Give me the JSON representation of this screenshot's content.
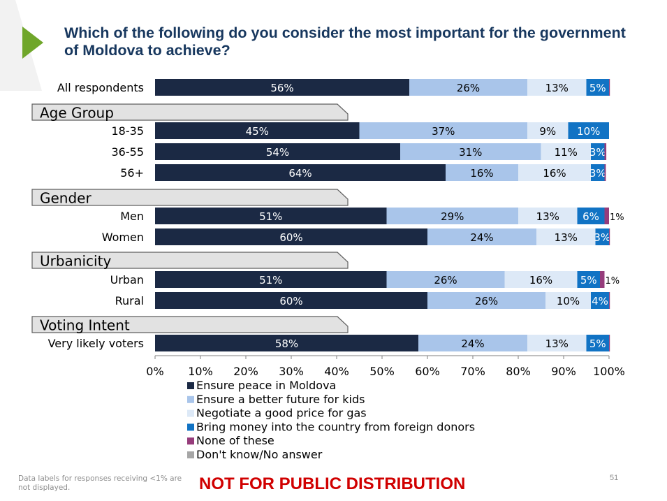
{
  "slide": {
    "title": "Which of the following do you consider the most important for the government of Moldova  to achieve?",
    "footnote": "Data labels for responses receiving <1% are not displayed.",
    "confidential": "NOT FOR PUBLIC DISTRIBUTION",
    "page_number": "51",
    "accent_color": "#6fa62a"
  },
  "chart_data": {
    "type": "bar",
    "orientation": "horizontal",
    "stacked": true,
    "title": "",
    "xlim": [
      0,
      100
    ],
    "x_ticks": [
      "0%",
      "10%",
      "20%",
      "30%",
      "40%",
      "50%",
      "60%",
      "70%",
      "80%",
      "90%",
      "100%"
    ],
    "legend_position": "bottom",
    "series": [
      {
        "name": "Ensure peace in Moldova",
        "color": "#1b2944"
      },
      {
        "name": "Ensure a better future for kids",
        "color": "#a9c5ea"
      },
      {
        "name": "Negotiate a good price for gas",
        "color": "#dde9f7"
      },
      {
        "name": "Bring money into the country from foreign donors",
        "color": "#1173c4"
      },
      {
        "name": "None of these",
        "color": "#963c7b"
      },
      {
        "name": "Don't know/No answer",
        "color": "#a6a6a6"
      }
    ],
    "groups": [
      "Age Group",
      "Gender",
      "Urbanicity",
      "Voting Intent"
    ],
    "rows": [
      {
        "type": "bar",
        "label": "All respondents",
        "values": [
          56,
          26,
          13,
          5,
          0.3,
          0
        ],
        "labels": [
          "56%",
          "26%",
          "13%",
          "5%",
          "",
          ""
        ]
      },
      {
        "type": "group",
        "label": "Age Group"
      },
      {
        "type": "bar",
        "label": "18-35",
        "values": [
          45,
          37,
          9,
          10,
          0,
          0
        ],
        "labels": [
          "45%",
          "37%",
          "9%",
          "10%",
          "",
          ""
        ]
      },
      {
        "type": "bar",
        "label": "36-55",
        "values": [
          54,
          31,
          11,
          3,
          0.4,
          0
        ],
        "labels": [
          "54%",
          "31%",
          "11%",
          "3%",
          "",
          ""
        ]
      },
      {
        "type": "bar",
        "label": "56+",
        "values": [
          64,
          16,
          16,
          3,
          0.3,
          0
        ],
        "labels": [
          "64%",
          "16%",
          "16%",
          "3%",
          "",
          ""
        ]
      },
      {
        "type": "group",
        "label": "Gender"
      },
      {
        "type": "bar",
        "label": "Men",
        "values": [
          51,
          29,
          13,
          6,
          1,
          0
        ],
        "labels": [
          "51%",
          "29%",
          "13%",
          "6%",
          "1%",
          ""
        ]
      },
      {
        "type": "bar",
        "label": "Women",
        "values": [
          60,
          24,
          13,
          3,
          0.3,
          0
        ],
        "labels": [
          "60%",
          "24%",
          "13%",
          "3%",
          "",
          ""
        ]
      },
      {
        "type": "group",
        "label": "Urbanicity"
      },
      {
        "type": "bar",
        "label": "Urban",
        "values": [
          51,
          26,
          16,
          5,
          1,
          0
        ],
        "labels": [
          "51%",
          "26%",
          "16%",
          "5%",
          "1%",
          ""
        ]
      },
      {
        "type": "bar",
        "label": "Rural",
        "values": [
          60,
          26,
          10,
          4,
          0.3,
          0
        ],
        "labels": [
          "60%",
          "26%",
          "10%",
          "4%",
          "",
          ""
        ]
      },
      {
        "type": "group",
        "label": "Voting Intent"
      },
      {
        "type": "bar",
        "label": "Very likely voters",
        "values": [
          58,
          24,
          13,
          5,
          0.3,
          0
        ],
        "labels": [
          "58%",
          "24%",
          "13%",
          "5%",
          "",
          ""
        ]
      }
    ]
  }
}
